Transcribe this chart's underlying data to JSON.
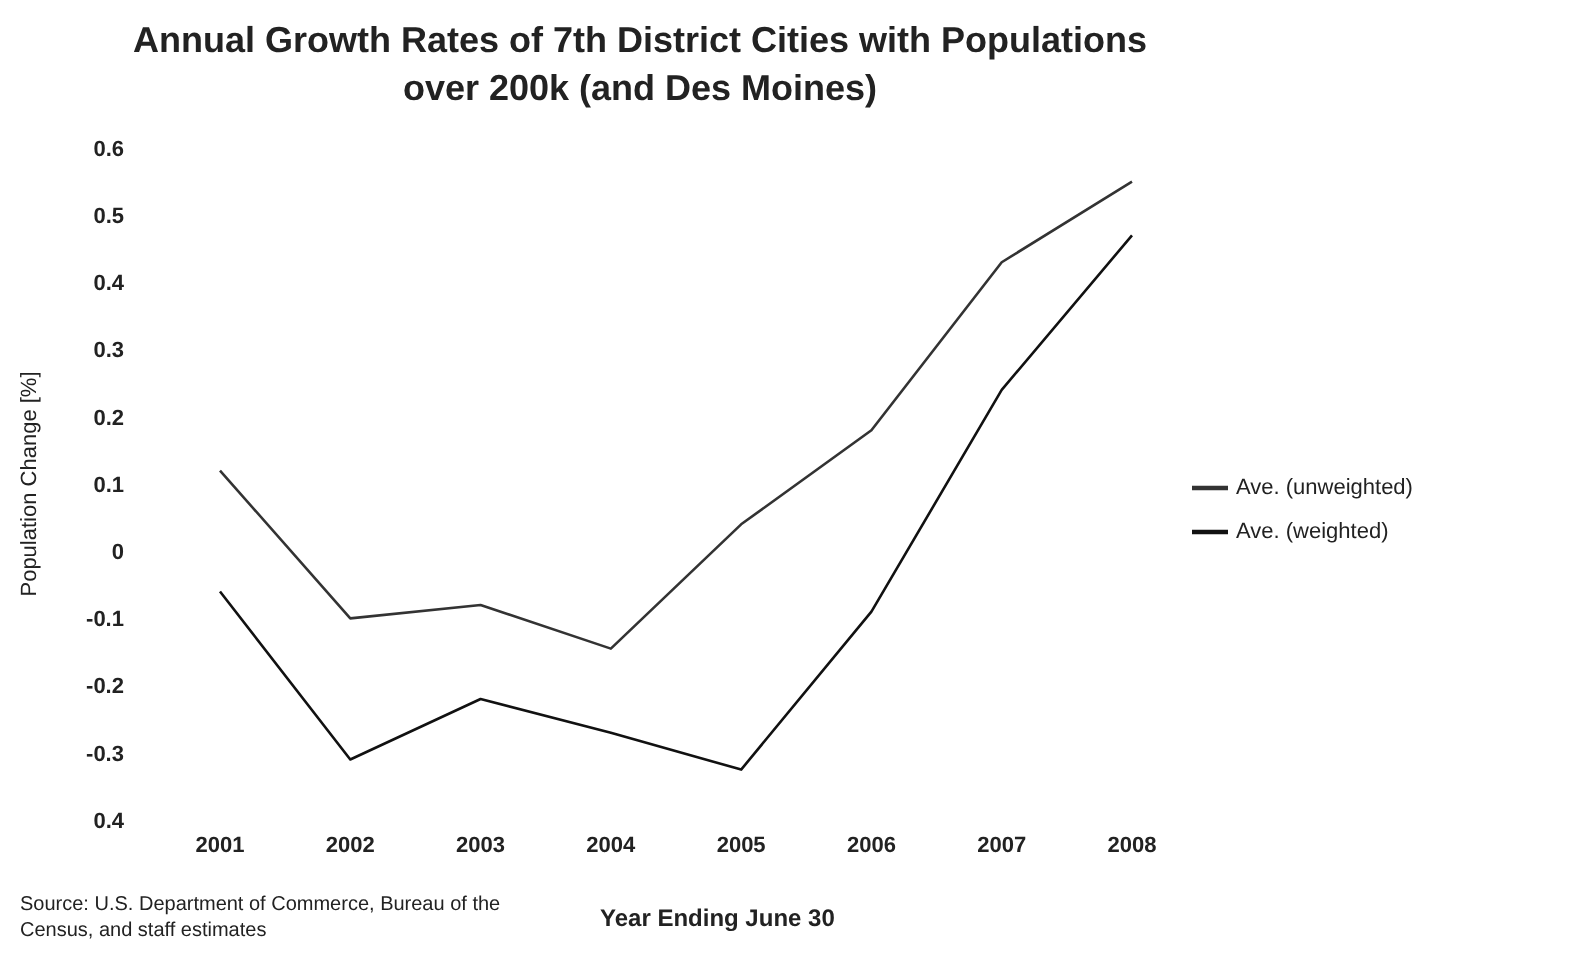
{
  "chart_data": {
    "type": "line",
    "title": "Annual Growth Rates of 7th District Cities with Populations over 200k (and Des Moines)",
    "xlabel": "Year Ending June 30",
    "ylabel": "Population Change [%]",
    "annotations": [
      "Source: U.S. Department of Commerce, Bureau of the Census, and staff estimates"
    ],
    "categories": [
      "2001",
      "2002",
      "2003",
      "2004",
      "2005",
      "2006",
      "2007",
      "2008"
    ],
    "series": [
      {
        "name": "Ave. (unweighted)",
        "color": "#333333",
        "values": [
          0.12,
          -0.1,
          -0.08,
          -0.145,
          0.04,
          0.18,
          0.43,
          0.55
        ]
      },
      {
        "name": "Ave. (weighted)",
        "color": "#111111",
        "values": [
          -0.06,
          -0.31,
          -0.22,
          -0.27,
          -0.325,
          -0.09,
          0.24,
          0.47
        ]
      }
    ],
    "ylim": [
      -0.4,
      0.6
    ],
    "yticks": [
      {
        "value": -0.4,
        "label": "0.4"
      },
      -0.3,
      -0.2,
      -0.1,
      0,
      0.1,
      0.2,
      0.3,
      0.4,
      0.5,
      0.6
    ],
    "grid": false,
    "legend": "right",
    "marker": "none",
    "line_style": "solid"
  }
}
